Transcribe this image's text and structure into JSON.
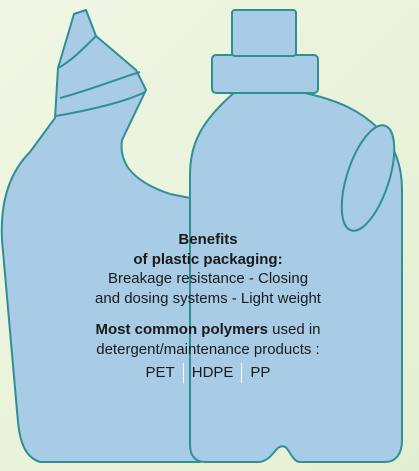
{
  "benefits": {
    "title_lines": [
      "Benefits",
      "of plastic packaging:"
    ],
    "text_lines": [
      "Breakage resistance - Closing",
      "and dosing systems - Light weight"
    ]
  },
  "polymers": {
    "title": "Most common polymers",
    "text_lines": [
      "used in",
      "detergent/maintenance products :"
    ],
    "items": [
      "PET",
      "HDPE",
      "PP"
    ]
  }
}
